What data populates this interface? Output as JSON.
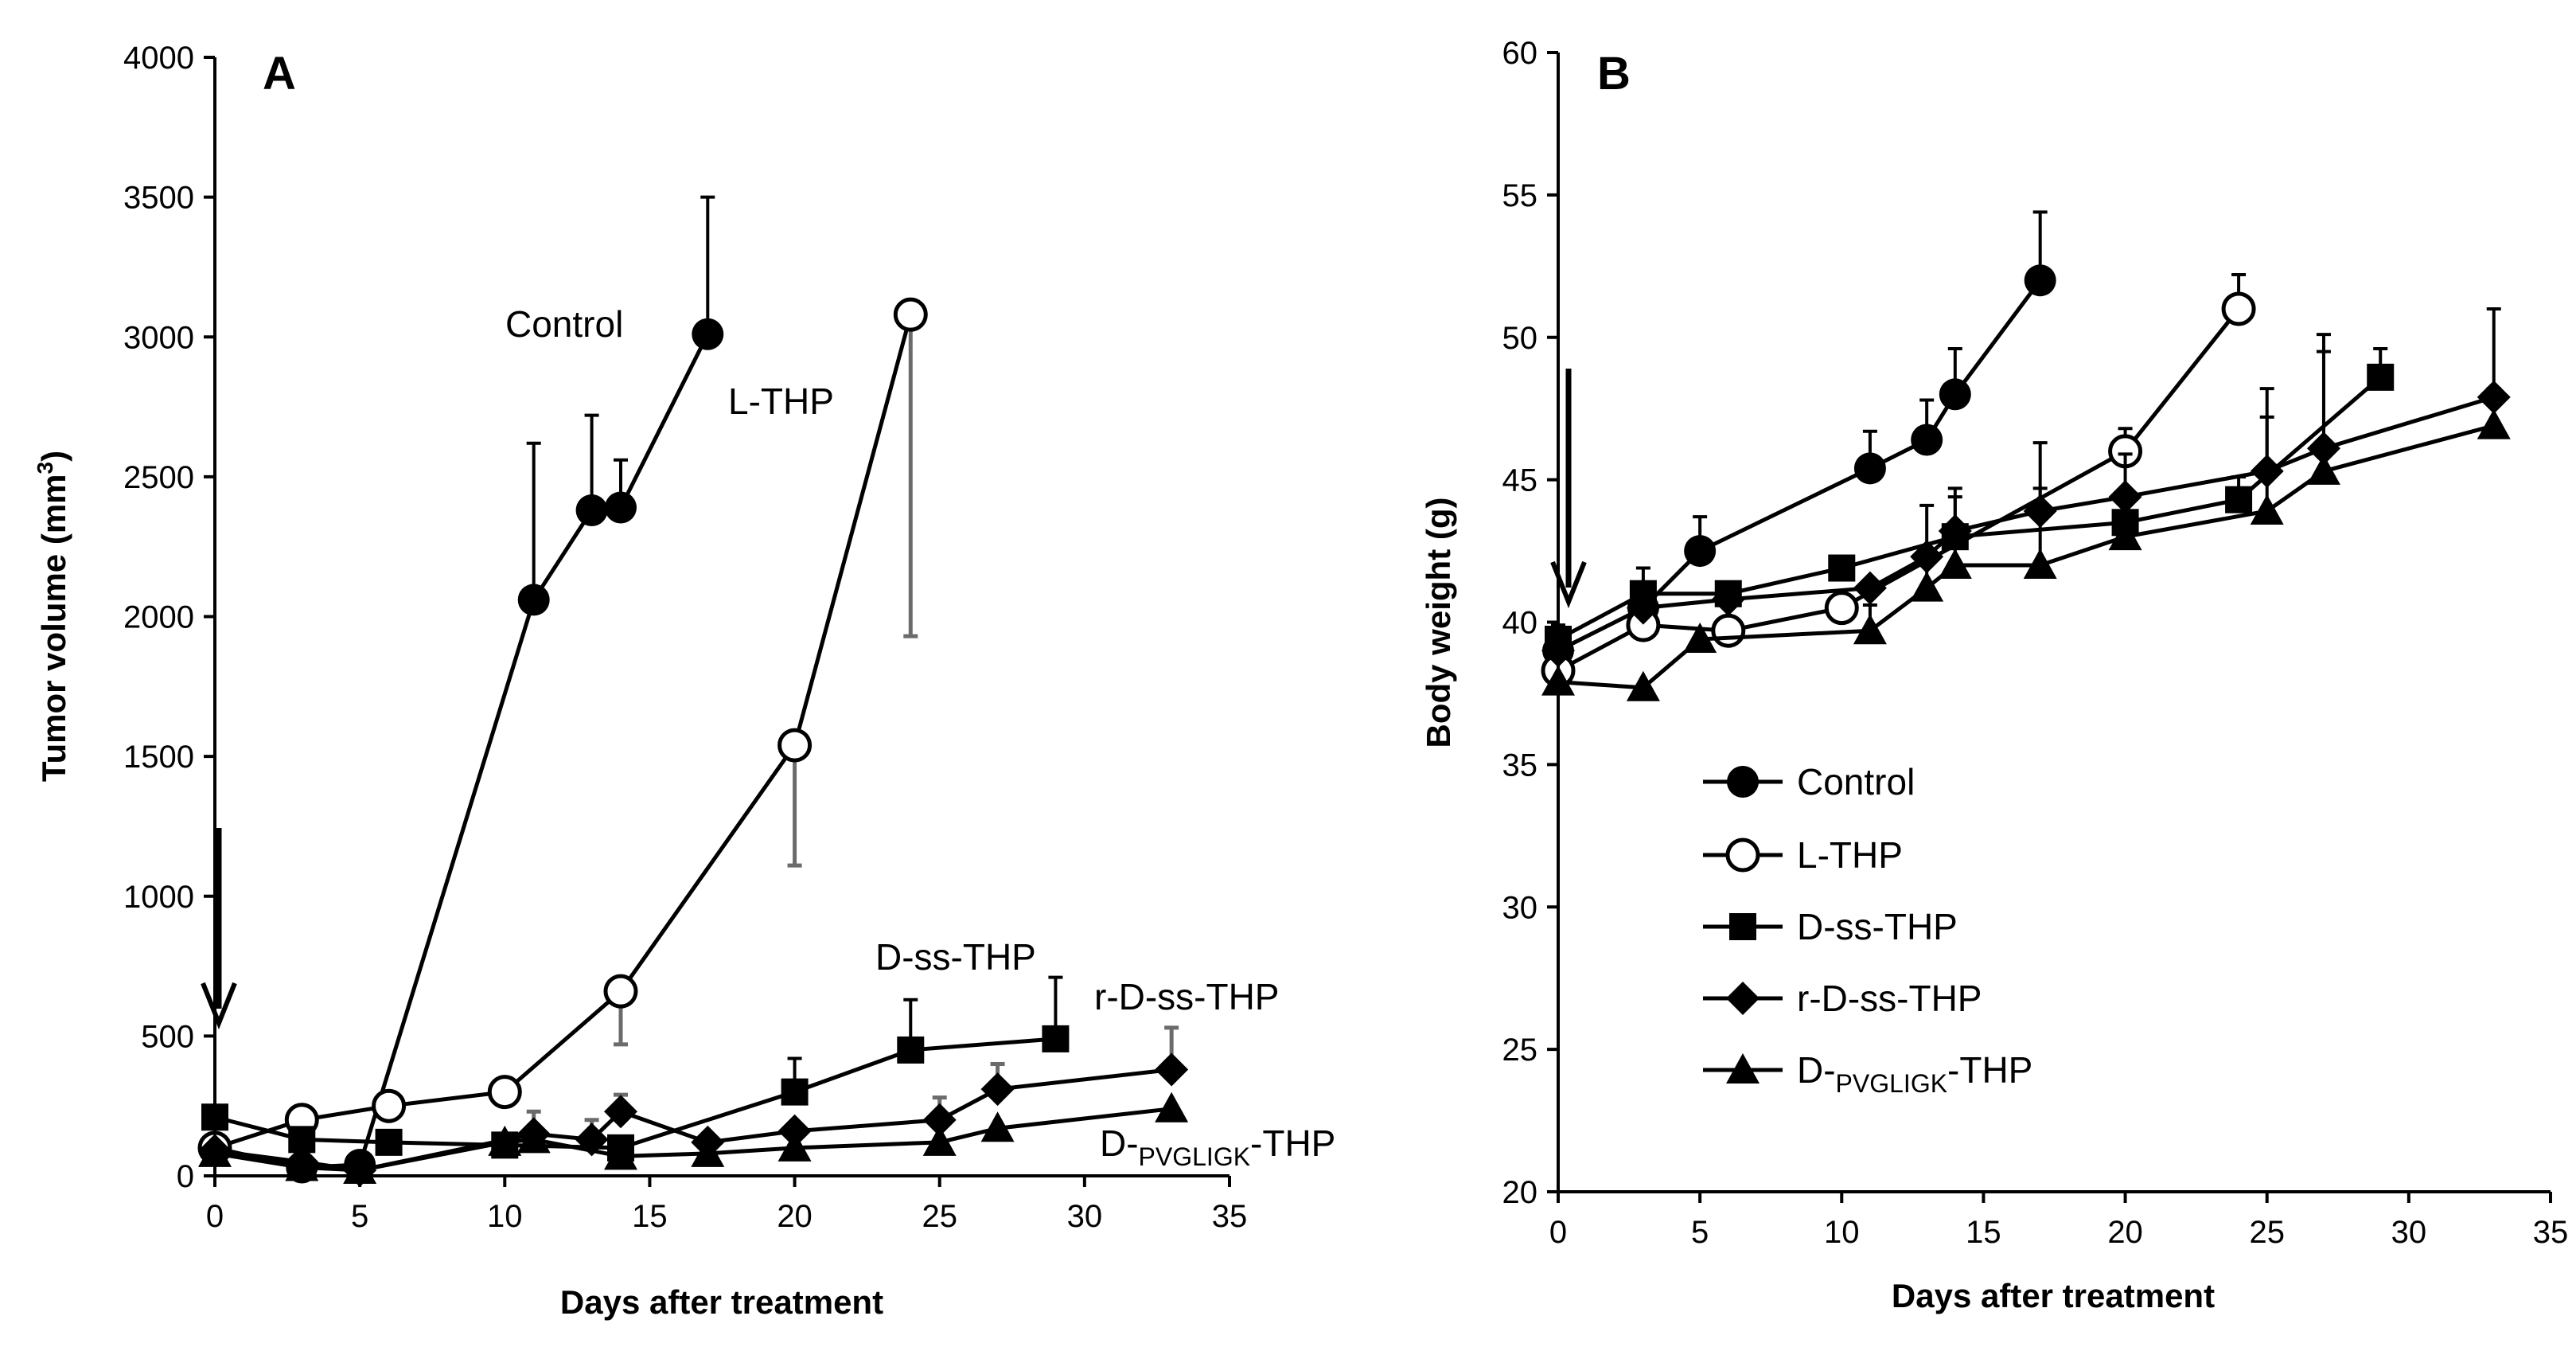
{
  "chart_data": [
    {
      "panel": "A",
      "type": "line",
      "xlabel": "Days after treatment",
      "ylabel_main": "Tumor volume (mm",
      "ylabel_sup": "3",
      "ylabel_tail": ")",
      "xlim": [
        0,
        35
      ],
      "ylim": [
        0,
        4000
      ],
      "xticks": [
        0,
        5,
        10,
        15,
        20,
        25,
        30,
        35
      ],
      "yticks": [
        0,
        500,
        1000,
        1500,
        2000,
        2500,
        3000,
        3500,
        4000
      ],
      "arrow_day": 0,
      "series": [
        {
          "name": "Control",
          "marker": "filled-circle",
          "x": [
            0,
            3,
            5,
            11,
            13,
            14,
            17
          ],
          "y": [
            100,
            30,
            40,
            2060,
            2380,
            2390,
            3010
          ],
          "err": [
            0,
            0,
            0,
            560,
            340,
            170,
            490
          ],
          "err_color": "black"
        },
        {
          "name": "L-THP",
          "marker": "open-circle",
          "x": [
            0,
            3,
            6,
            10,
            14,
            20,
            24
          ],
          "y": [
            100,
            200,
            250,
            300,
            660,
            1540,
            3080
          ],
          "err": [
            0,
            0,
            0,
            0,
            190,
            430,
            1150
          ],
          "err_color": "gray",
          "err_dir": "down"
        },
        {
          "name": "D-ss-THP",
          "marker": "filled-square",
          "x": [
            0,
            3,
            6,
            10,
            14,
            20,
            24,
            29
          ],
          "y": [
            210,
            130,
            120,
            110,
            100,
            300,
            450,
            490
          ],
          "err": [
            0,
            0,
            0,
            0,
            0,
            120,
            180,
            220
          ],
          "err_color": "black"
        },
        {
          "name": "r-D-ss-THP",
          "marker": "filled-diamond",
          "x": [
            0,
            3,
            5,
            11,
            13,
            14,
            17,
            20,
            25,
            27,
            33
          ],
          "y": [
            90,
            50,
            20,
            150,
            130,
            230,
            120,
            160,
            200,
            310,
            380
          ],
          "err": [
            0,
            0,
            0,
            80,
            70,
            60,
            0,
            0,
            80,
            90,
            150
          ],
          "err_color": "gray"
        },
        {
          "name": "D-",
          "name_sub": "PVGLIGK",
          "name_tail": "-THP",
          "marker": "filled-triangle",
          "x": [
            0,
            3,
            5,
            10,
            11,
            14,
            17,
            20,
            25,
            27,
            33
          ],
          "y": [
            80,
            30,
            20,
            120,
            130,
            70,
            80,
            100,
            120,
            170,
            240
          ],
          "err": [
            0,
            0,
            0,
            0,
            0,
            0,
            0,
            0,
            0,
            0,
            0
          ],
          "err_color": "black"
        }
      ],
      "labels": {
        "control": "Control",
        "lthp": "L-THP",
        "dss": "D-ss-THP",
        "rdss": "r-D-ss-THP",
        "pv_main": "D-",
        "pv_sub": "PVGLIGK",
        "pv_tail": "-THP"
      }
    },
    {
      "panel": "B",
      "type": "line",
      "xlabel": "Days after treatment",
      "ylabel": "Body weight (g)",
      "xlim": [
        0,
        35
      ],
      "ylim": [
        20,
        60
      ],
      "xticks": [
        0,
        5,
        10,
        15,
        20,
        25,
        30,
        35
      ],
      "yticks": [
        20,
        25,
        30,
        35,
        40,
        45,
        50,
        55,
        60
      ],
      "arrow_day": 0,
      "series": [
        {
          "name": "Control",
          "marker": "filled-circle",
          "x": [
            0,
            3,
            5,
            11,
            13,
            14,
            17
          ],
          "y": [
            39.0,
            40.5,
            42.5,
            45.4,
            46.4,
            48.0,
            52.0
          ],
          "err": [
            0,
            0,
            1.2,
            1.3,
            1.4,
            1.6,
            2.4
          ]
        },
        {
          "name": "L-THP",
          "marker": "open-circle",
          "x": [
            0,
            3,
            6,
            10,
            20,
            24
          ],
          "y": [
            38.3,
            39.9,
            39.7,
            40.5,
            46.0,
            51.0
          ],
          "err": [
            0,
            0,
            0,
            0,
            0.8,
            1.2
          ]
        },
        {
          "name": "D-ss-THP",
          "marker": "filled-square",
          "x": [
            0,
            3,
            6,
            10,
            14,
            20,
            24,
            29
          ],
          "y": [
            39.4,
            41.0,
            41.0,
            41.9,
            43.0,
            43.5,
            44.3,
            48.6
          ],
          "err": [
            0,
            0.9,
            0,
            0,
            1.4,
            0,
            0.8,
            1.0
          ]
        },
        {
          "name": "r-D-ss-THP",
          "marker": "filled-diamond",
          "x": [
            0,
            3,
            6,
            11,
            13,
            14,
            17,
            20,
            25,
            27,
            33
          ],
          "y": [
            39.0,
            40.5,
            40.8,
            41.2,
            42.3,
            43.2,
            43.9,
            44.4,
            45.3,
            46.1,
            47.9
          ],
          "err": [
            0,
            0,
            0,
            0,
            0,
            0,
            2.4,
            0,
            2.9,
            4.0,
            3.1
          ]
        },
        {
          "name": "D-",
          "name_sub": "PVGLIGK",
          "name_tail": "-THP",
          "marker": "filled-triangle",
          "x": [
            0,
            3,
            5,
            11,
            13,
            14,
            17,
            20,
            25,
            27,
            33
          ],
          "y": [
            37.9,
            37.7,
            39.4,
            39.7,
            41.2,
            42.0,
            42.0,
            43.0,
            43.9,
            45.3,
            46.9
          ],
          "err": [
            2.0,
            0,
            0,
            0.9,
            2.9,
            2.7,
            2.7,
            2.9,
            3.3,
            4.2,
            1.3
          ]
        }
      ],
      "legend": [
        {
          "marker": "filled-circle",
          "label": "Control"
        },
        {
          "marker": "open-circle",
          "label": "L-THP"
        },
        {
          "marker": "filled-square",
          "label": "D-ss-THP"
        },
        {
          "marker": "filled-diamond",
          "label": "r-D-ss-THP"
        },
        {
          "marker": "filled-triangle",
          "label_main": "D-",
          "label_sub": "PVGLIGK",
          "label_tail": "-THP"
        }
      ]
    }
  ]
}
